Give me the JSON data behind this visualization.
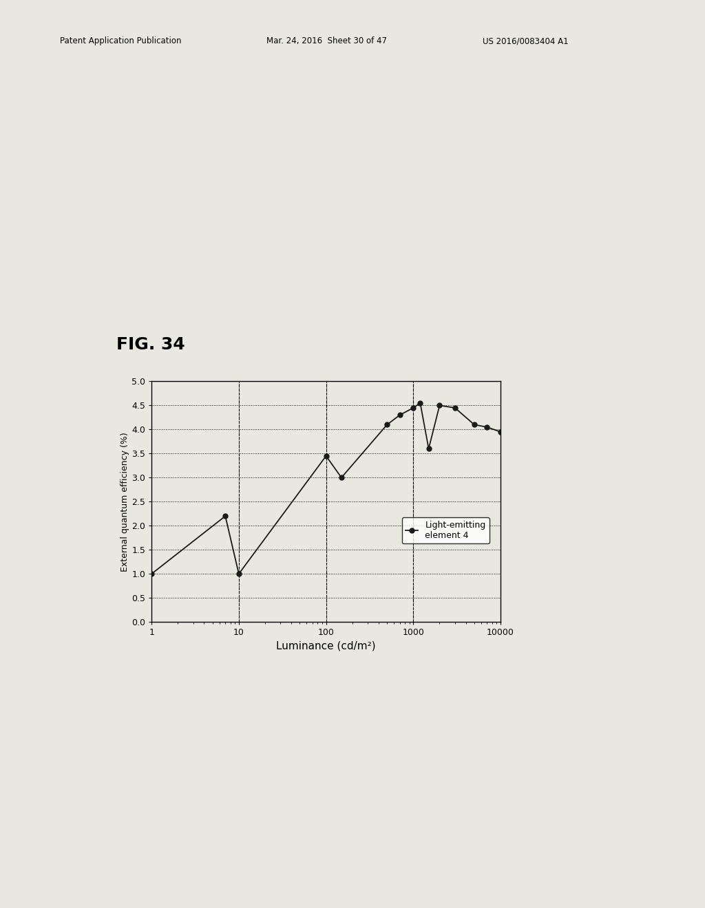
{
  "x_values": [
    1,
    7,
    10,
    100,
    150,
    500,
    700,
    1000,
    1200,
    1500,
    2000,
    3000,
    5000,
    7000,
    10000
  ],
  "y_values": [
    1.0,
    2.2,
    1.0,
    3.45,
    3.0,
    4.1,
    4.3,
    4.45,
    4.55,
    3.6,
    4.5,
    4.45,
    4.1,
    4.05,
    3.95
  ],
  "line_color": "#1a1a1a",
  "marker_color": "#1a1a1a",
  "marker_style": "o",
  "marker_size": 5,
  "line_width": 1.3,
  "xlabel": "Luminance (cd/m²)",
  "ylabel": "External quantum efficiency (%)",
  "xlim": [
    1,
    10000
  ],
  "ylim": [
    0,
    5
  ],
  "yticks": [
    0,
    0.5,
    1,
    1.5,
    2,
    2.5,
    3,
    3.5,
    4,
    4.5,
    5
  ],
  "legend_label": "Light-emitting\nelement 4",
  "fig_title": "FIG. 34",
  "background_color": "#e8e8e0",
  "plot_bg_color": "#e8e8e0",
  "grid_color": "#000000",
  "xlabel_fontsize": 11,
  "ylabel_fontsize": 9,
  "tick_fontsize": 9,
  "legend_fontsize": 9,
  "title_fontsize": 18,
  "header_left": "Patent Application Publication",
  "header_mid": "Mar. 24, 2016  Sheet 30 of 47",
  "header_right": "US 2016/0083404 A1"
}
